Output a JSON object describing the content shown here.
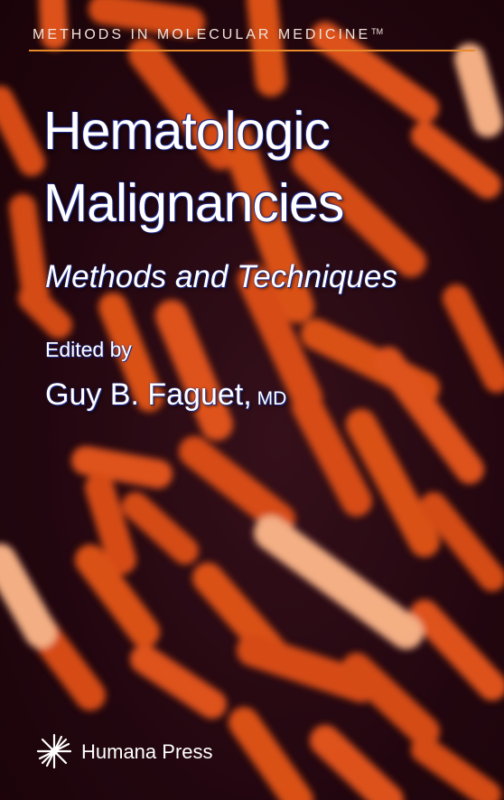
{
  "series": {
    "name": "METHODS IN MOLECULAR MEDICINE",
    "trademark": "TM"
  },
  "title": {
    "line1": "Hematologic",
    "line2": "Malignancies"
  },
  "subtitle": "Methods and Techniques",
  "editor": {
    "prefix": "Edited by",
    "name": "Guy B. Faguet,",
    "degree": "MD"
  },
  "publisher": {
    "name": "Humana Press",
    "logo": "starburst-logo"
  },
  "colors": {
    "background": "#22060f",
    "chromosome": "#e8561b",
    "chromosome_bright": "#ffb88a",
    "rule": "#e8892a",
    "text": "#ffffff",
    "text_outline": "#1d2a8a"
  }
}
